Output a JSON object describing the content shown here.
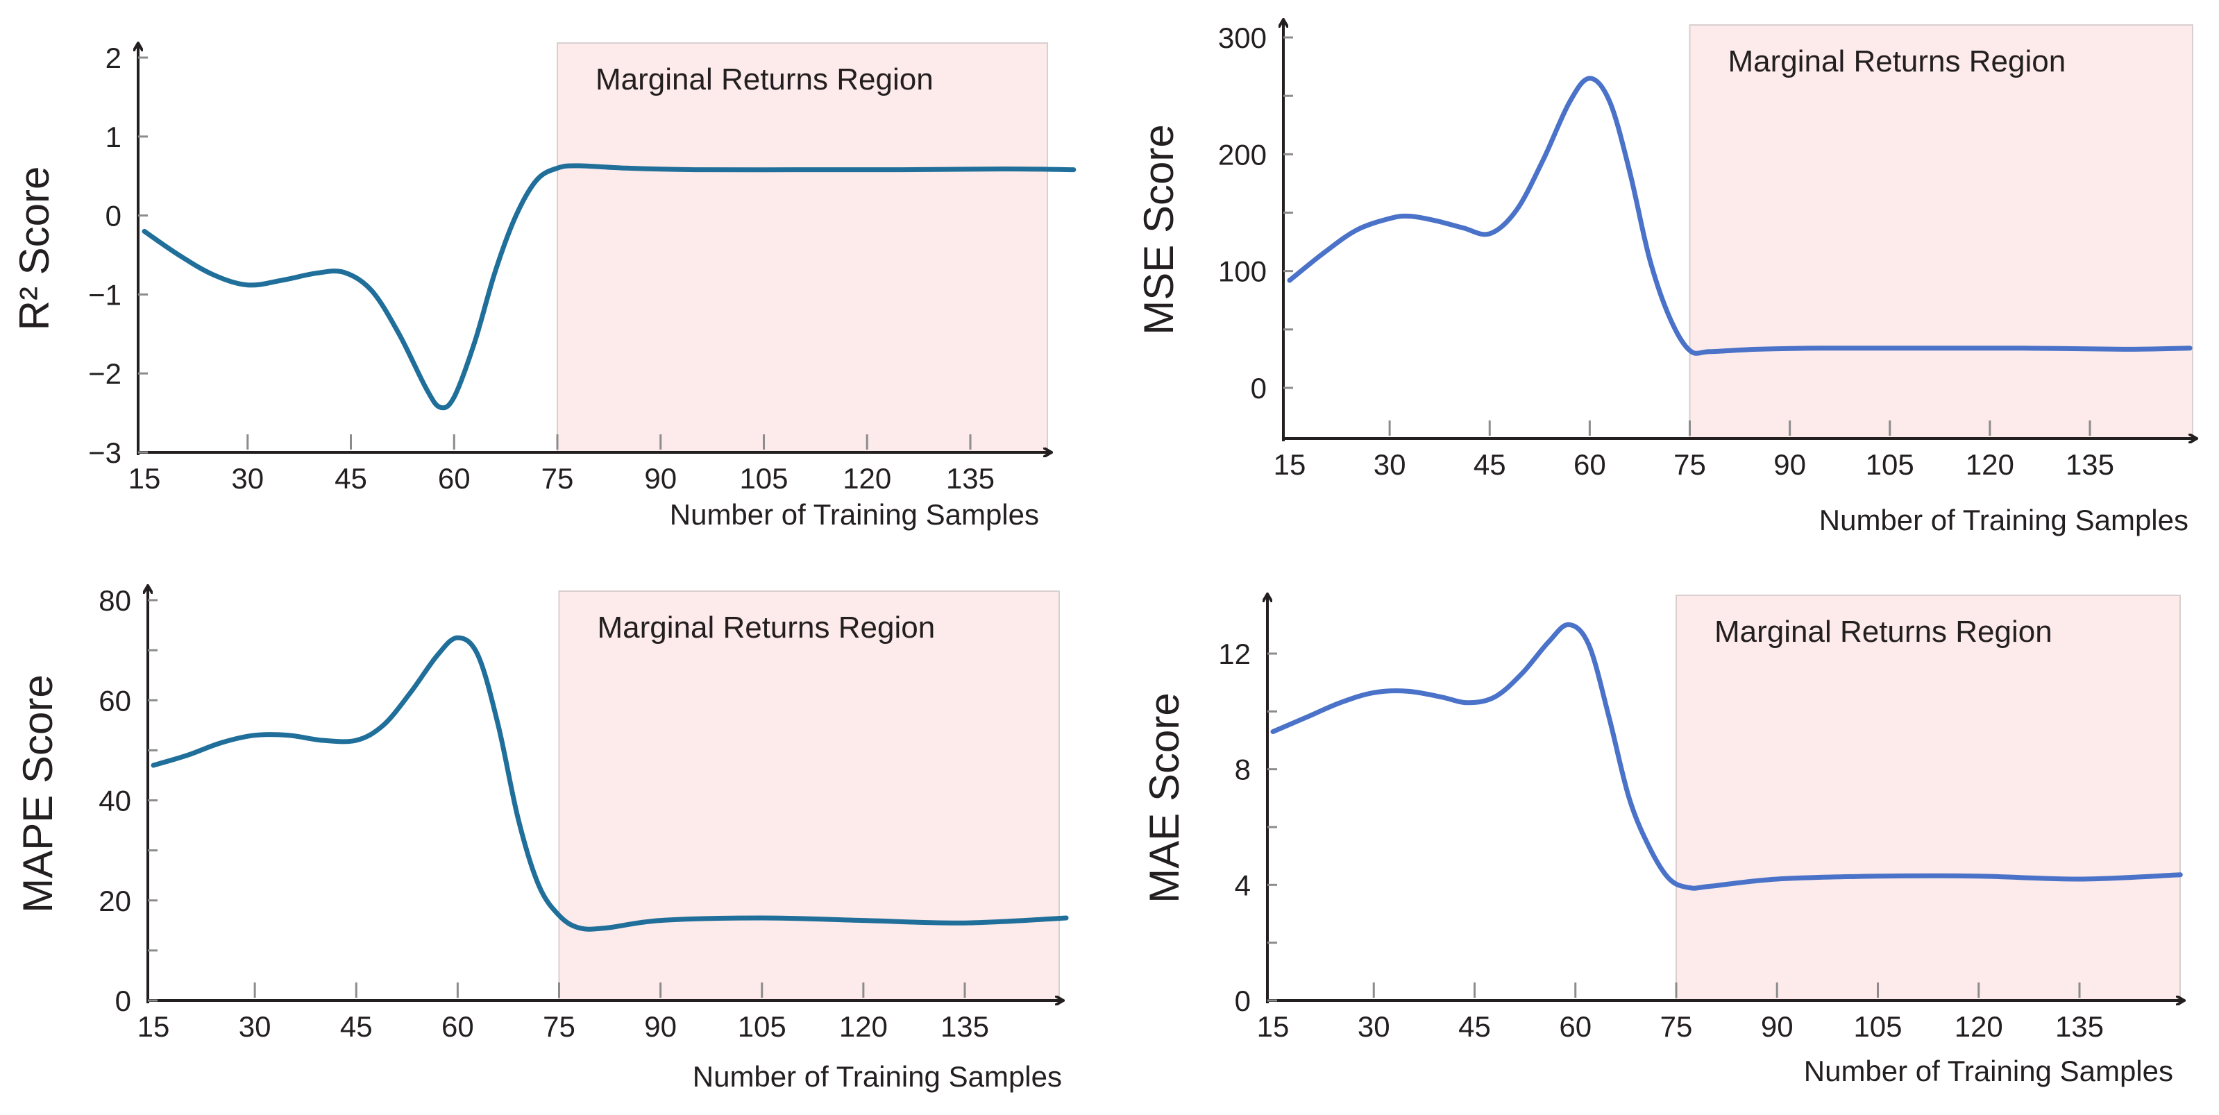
{
  "chart_data": [
    {
      "type": "line",
      "ylabel": "R² Score",
      "xlabel": "Number of Training Samples",
      "xlim": [
        15,
        150
      ],
      "ylim": [
        -3,
        2
      ],
      "x_ticks": [
        15,
        30,
        45,
        60,
        75,
        90,
        105,
        120,
        135
      ],
      "x_tick_labels": [
        "15",
        "30",
        "45",
        "60",
        "75",
        "90",
        "105",
        "120",
        "135"
      ],
      "y_ticks": [
        -3,
        -2,
        -1,
        0,
        1,
        2
      ],
      "y_tick_labels": [
        "−3",
        "−2",
        "−1",
        "0",
        "1",
        "2"
      ],
      "y_minor_ticks": [],
      "region": {
        "label": "Marginal Returns Region",
        "x_start": 75
      },
      "line_color": "#1f6f9a",
      "region_color": "#fdeaea",
      "series": [
        {
          "name": "R² Score",
          "x": [
            15,
            20,
            25,
            30,
            35,
            40,
            44,
            48,
            52,
            56,
            58,
            60,
            63,
            66,
            69,
            72,
            75,
            78,
            85,
            95,
            110,
            125,
            140,
            150
          ],
          "values": [
            -0.2,
            -0.5,
            -0.75,
            -0.88,
            -0.82,
            -0.73,
            -0.72,
            -0.95,
            -1.5,
            -2.2,
            -2.43,
            -2.3,
            -1.6,
            -0.7,
            0.0,
            0.45,
            0.6,
            0.63,
            0.6,
            0.58,
            0.58,
            0.58,
            0.59,
            0.58
          ]
        }
      ]
    },
    {
      "type": "line",
      "ylabel": "MSE Score",
      "xlabel": "Number of Training Samples",
      "xlim": [
        15,
        150
      ],
      "ylim": [
        -45,
        300
      ],
      "x_ticks": [
        15,
        30,
        45,
        60,
        75,
        90,
        105,
        120,
        135
      ],
      "x_tick_labels": [
        "15",
        "30",
        "45",
        "60",
        "75",
        "90",
        "105",
        "120",
        "135"
      ],
      "y_ticks": [
        0,
        100,
        200,
        300
      ],
      "y_tick_labels": [
        "0",
        "100",
        "200",
        "300"
      ],
      "y_minor_ticks": [
        50,
        150,
        250
      ],
      "region": {
        "label": "Marginal Returns Region",
        "x_start": 75
      },
      "line_color": "#4a72c8",
      "region_color": "#fdeaea",
      "series": [
        {
          "name": "MSE Score",
          "x": [
            15,
            20,
            25,
            30,
            33,
            37,
            41,
            45,
            49,
            53,
            57,
            60,
            63,
            66,
            69,
            72,
            75,
            78,
            85,
            95,
            110,
            125,
            140,
            150
          ],
          "values": [
            92,
            115,
            135,
            145,
            147,
            143,
            137,
            132,
            152,
            195,
            245,
            265,
            245,
            185,
            110,
            60,
            32,
            31,
            33,
            34,
            34,
            34,
            33,
            34
          ]
        }
      ]
    },
    {
      "type": "line",
      "ylabel": "MAPE Score",
      "xlabel": "Number of Training Samples",
      "xlim": [
        15,
        150
      ],
      "ylim": [
        0,
        80
      ],
      "x_ticks": [
        15,
        30,
        45,
        60,
        75,
        90,
        105,
        120,
        135
      ],
      "x_tick_labels": [
        "15",
        "30",
        "45",
        "60",
        "75",
        "90",
        "105",
        "120",
        "135"
      ],
      "y_ticks": [
        0,
        20,
        40,
        60,
        80
      ],
      "y_tick_labels": [
        "0",
        "20",
        "40",
        "60",
        "80"
      ],
      "y_minor_ticks": [
        10,
        30,
        50,
        70
      ],
      "region": {
        "label": "Marginal Returns Region",
        "x_start": 75
      },
      "line_color": "#1f6f9a",
      "region_color": "#fdeaea",
      "series": [
        {
          "name": "MAPE Score",
          "x": [
            15,
            20,
            25,
            30,
            35,
            40,
            45,
            49,
            53,
            57,
            60,
            63,
            66,
            69,
            72,
            75,
            78,
            82,
            90,
            105,
            120,
            135,
            150
          ],
          "values": [
            47,
            49,
            51.5,
            53,
            53,
            52,
            52,
            55,
            61.5,
            69,
            72.5,
            69,
            55,
            36,
            23,
            17,
            14.5,
            14.5,
            16,
            16.5,
            16,
            15.5,
            16.5
          ]
        }
      ]
    },
    {
      "type": "line",
      "ylabel": "MAE Score",
      "xlabel": "Number of Training Samples",
      "xlim": [
        15,
        150
      ],
      "ylim": [
        0,
        14
      ],
      "x_ticks": [
        15,
        30,
        45,
        60,
        75,
        90,
        105,
        120,
        135
      ],
      "x_tick_labels": [
        "15",
        "30",
        "45",
        "60",
        "75",
        "90",
        "105",
        "120",
        "135"
      ],
      "y_ticks": [
        0,
        4,
        8,
        12
      ],
      "y_tick_labels": [
        "0",
        "4",
        "8",
        "12"
      ],
      "y_minor_ticks": [
        2,
        6,
        10
      ],
      "region": {
        "label": "Marginal Returns Region",
        "x_start": 75
      },
      "line_color": "#4a72c8",
      "region_color": "#fdeaea",
      "series": [
        {
          "name": "MAE Score",
          "x": [
            15,
            20,
            25,
            30,
            35,
            40,
            44,
            48,
            52,
            56,
            59,
            62,
            65,
            68,
            71,
            74,
            77,
            80,
            90,
            105,
            120,
            135,
            150
          ],
          "values": [
            9.3,
            9.8,
            10.3,
            10.65,
            10.7,
            10.5,
            10.3,
            10.5,
            11.3,
            12.4,
            13.0,
            12.3,
            9.8,
            7.0,
            5.3,
            4.2,
            3.9,
            3.95,
            4.2,
            4.3,
            4.3,
            4.2,
            4.35
          ]
        }
      ]
    }
  ]
}
